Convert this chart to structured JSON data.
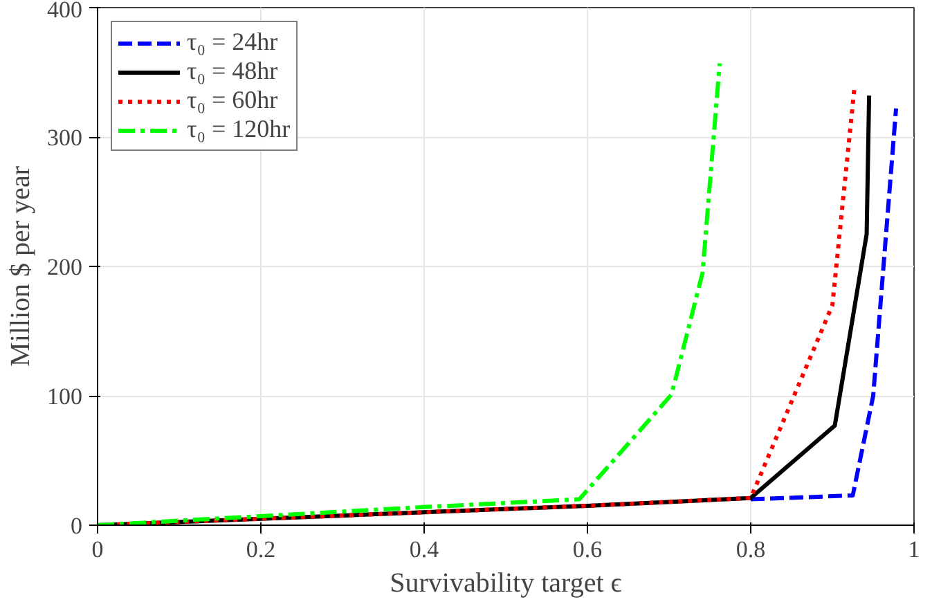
{
  "chart_data": {
    "type": "line",
    "xlabel": "Survivability target ϵ",
    "ylabel": "Million $ per year",
    "xlim": [
      0,
      1
    ],
    "ylim": [
      0,
      400
    ],
    "xticks": [
      0,
      0.2,
      0.4,
      0.6,
      0.8,
      1
    ],
    "yticks": [
      0,
      100,
      200,
      300,
      400
    ],
    "grid": true,
    "legend": "top left",
    "series": [
      {
        "name": "τ₀ = 24hr",
        "color": "#0000ff",
        "line_style": "dashed",
        "x": [
          0.8,
          0.925,
          0.95,
          0.978
        ],
        "values": [
          20,
          23,
          100,
          322
        ]
      },
      {
        "name": "τ₀ = 48hr",
        "color": "#000000",
        "line_style": "solid",
        "x": [
          0,
          0.2,
          0.4,
          0.6,
          0.8,
          0.903,
          0.942,
          0.945
        ],
        "values": [
          0,
          5,
          10,
          15,
          21,
          77,
          225,
          332
        ]
      },
      {
        "name": "τ₀ = 60hr",
        "color": "#ff0000",
        "line_style": "dotted",
        "x": [
          0,
          0.2,
          0.4,
          0.6,
          0.8,
          0.9,
          0.927
        ],
        "values": [
          0,
          5,
          10,
          15,
          21,
          170,
          338
        ]
      },
      {
        "name": "τ₀ = 120hr",
        "color": "#00ff00",
        "line_style": "dashdot",
        "x": [
          0,
          0.2,
          0.4,
          0.59,
          0.703,
          0.741,
          0.762
        ],
        "values": [
          0,
          7,
          14,
          20,
          101,
          195,
          357
        ]
      }
    ]
  }
}
